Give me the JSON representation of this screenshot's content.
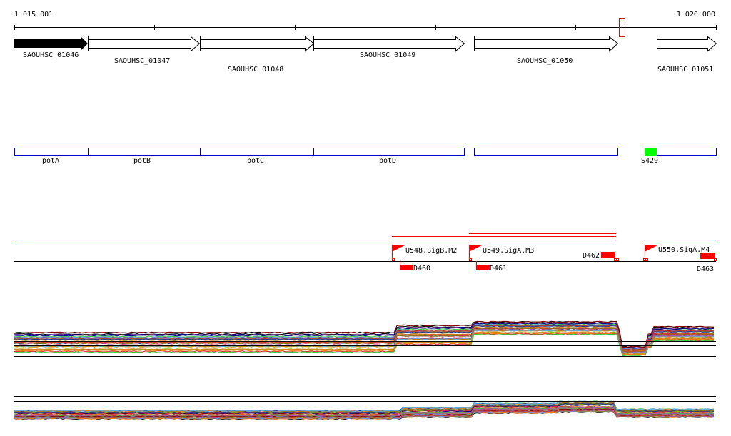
{
  "ruler": {
    "start_label": "1 015 001",
    "end_label": "1 020 000"
  },
  "genes": [
    {
      "id": "SAOUHSC_01046",
      "strand": "+",
      "highlighted": true
    },
    {
      "id": "SAOUHSC_01047",
      "strand": "+"
    },
    {
      "id": "SAOUHSC_01048",
      "strand": "+"
    },
    {
      "id": "SAOUHSC_01049",
      "strand": "+"
    },
    {
      "id": "SAOUHSC_01050",
      "strand": "+"
    },
    {
      "id": "SAOUHSC_01051",
      "strand": "+"
    }
  ],
  "annotations": [
    {
      "name": "potA"
    },
    {
      "name": "potB"
    },
    {
      "name": "potC"
    },
    {
      "name": "potD"
    },
    {
      "name": ""
    },
    {
      "name": "S429"
    }
  ],
  "features": {
    "promoters": [
      "U548.SigB.M2",
      "U549.SigA.M3",
      "U550.SigA.M4"
    ],
    "terminators": [
      "D460",
      "D461",
      "D462",
      "D463"
    ]
  },
  "colors": {
    "gene_fill_highlight": "#000000",
    "annotation_border": "#0000cc",
    "srna": "#00ff00",
    "feature": "#ff0000",
    "transcript_green": "#00ee00",
    "cursor_box": "#b22222",
    "profile_palette": [
      "#1f3a93",
      "#d62728",
      "#e67e22",
      "#8c7a1a",
      "#5dade2",
      "#2ecc40",
      "#c0392b",
      "#9b59b6",
      "#000080",
      "#a0522d",
      "#e91e63",
      "#7fbf00",
      "#ff7f0e",
      "#b8860b",
      "#6495ed",
      "#8b0000"
    ]
  }
}
